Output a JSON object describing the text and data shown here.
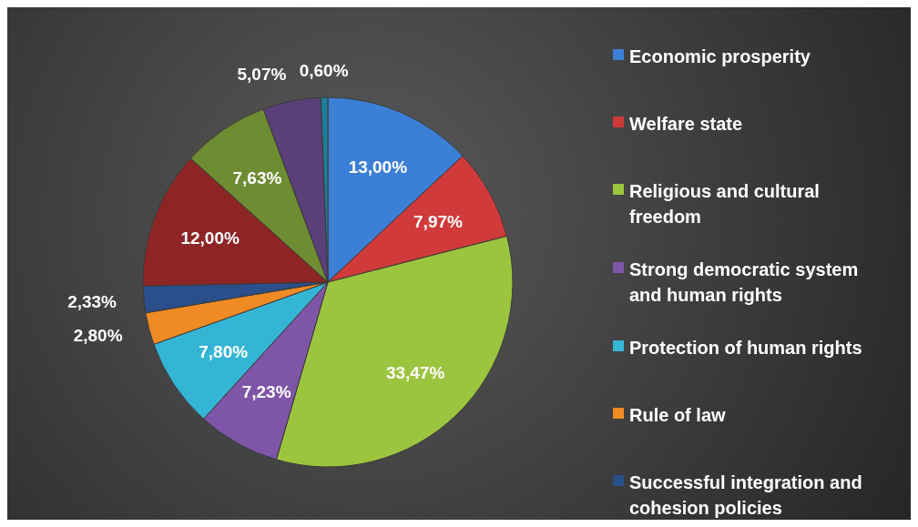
{
  "chart_data": {
    "type": "pie",
    "categories": [
      "Economic prosperity",
      "Welfare state",
      "Religious and cultural freedom",
      "Strong democratic system and human rights",
      "Protection of human rights",
      "Rule of law",
      "Successful integration and cohesion policies",
      null,
      null,
      null,
      null
    ],
    "values": [
      13.0,
      7.97,
      33.47,
      7.23,
      7.8,
      2.8,
      2.33,
      12.0,
      7.63,
      5.07,
      0.6
    ],
    "value_labels": [
      "13,00%",
      "7,97%",
      "33,47%",
      "7,23%",
      "7,80%",
      "2,80%",
      "2,33%",
      "12,00%",
      "7,63%",
      "5,07%",
      "0,60%"
    ],
    "colors": [
      "#3c7fd6",
      "#d03a3a",
      "#9cc53f",
      "#7f55a8",
      "#35b5d6",
      "#f08a24",
      "#2a4f8a",
      "#8e2525",
      "#6e8c32",
      "#5a3f78",
      "#1f7f99"
    ],
    "legend": "right"
  }
}
